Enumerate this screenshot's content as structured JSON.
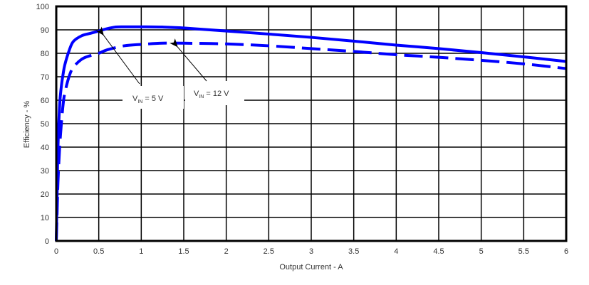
{
  "chart_data": {
    "type": "line",
    "title": "",
    "xlabel": "Output Current - A",
    "ylabel": "Efficiency - %",
    "xlim": [
      0,
      6
    ],
    "ylim": [
      0,
      100
    ],
    "x_ticks": [
      "0",
      "0.5",
      "1",
      "1.5",
      "2",
      "2.5",
      "3",
      "3.5",
      "4",
      "4.5",
      "5",
      "5.5",
      "6"
    ],
    "y_ticks": [
      "0",
      "10",
      "20",
      "30",
      "40",
      "50",
      "60",
      "70",
      "80",
      "90",
      "100"
    ],
    "grid": true,
    "legend": "none (inline annotations with arrows)",
    "series": [
      {
        "name": "VIN = 5 V",
        "style": "solid",
        "color": "#0000ff",
        "x": [
          0.0,
          0.01,
          0.02,
          0.04,
          0.06,
          0.08,
          0.1,
          0.15,
          0.2,
          0.3,
          0.4,
          0.5,
          0.6,
          0.7,
          0.8,
          1.0,
          1.25,
          1.5,
          2.0,
          2.5,
          3.0,
          3.5,
          4.0,
          4.5,
          5.0,
          5.5,
          6.0
        ],
        "y": [
          0,
          20,
          40,
          58,
          66,
          71,
          75,
          81,
          85,
          87.5,
          88.5,
          89.5,
          90.5,
          91.2,
          91.3,
          91.3,
          91.2,
          90.8,
          89.5,
          88.2,
          86.8,
          85.2,
          83.5,
          82.0,
          80.3,
          78.5,
          76.5
        ]
      },
      {
        "name": "VIN = 12 V",
        "style": "dashed",
        "color": "#0000ff",
        "x": [
          0.0,
          0.01,
          0.02,
          0.04,
          0.06,
          0.08,
          0.1,
          0.15,
          0.2,
          0.3,
          0.4,
          0.5,
          0.6,
          0.8,
          1.0,
          1.25,
          1.5,
          2.0,
          2.5,
          3.0,
          3.5,
          4.0,
          4.5,
          5.0,
          5.5,
          6.0
        ],
        "y": [
          0,
          12,
          25,
          40,
          50,
          58,
          63,
          70,
          74,
          77.5,
          79,
          80,
          81.5,
          83.2,
          83.8,
          84.3,
          84.3,
          84.0,
          83.2,
          82.0,
          80.8,
          79.4,
          78.3,
          77.0,
          75.5,
          73.5
        ]
      }
    ],
    "annotations": [
      {
        "text_main": "V",
        "text_sub": "IN",
        "text_rest": " = 5 V",
        "arrow_to_x": 0.53,
        "arrow_to_y": 89
      },
      {
        "text_main": "V",
        "text_sub": "IN",
        "text_rest": " = 12 V",
        "arrow_to_x": 1.4,
        "arrow_to_y": 84
      }
    ]
  }
}
